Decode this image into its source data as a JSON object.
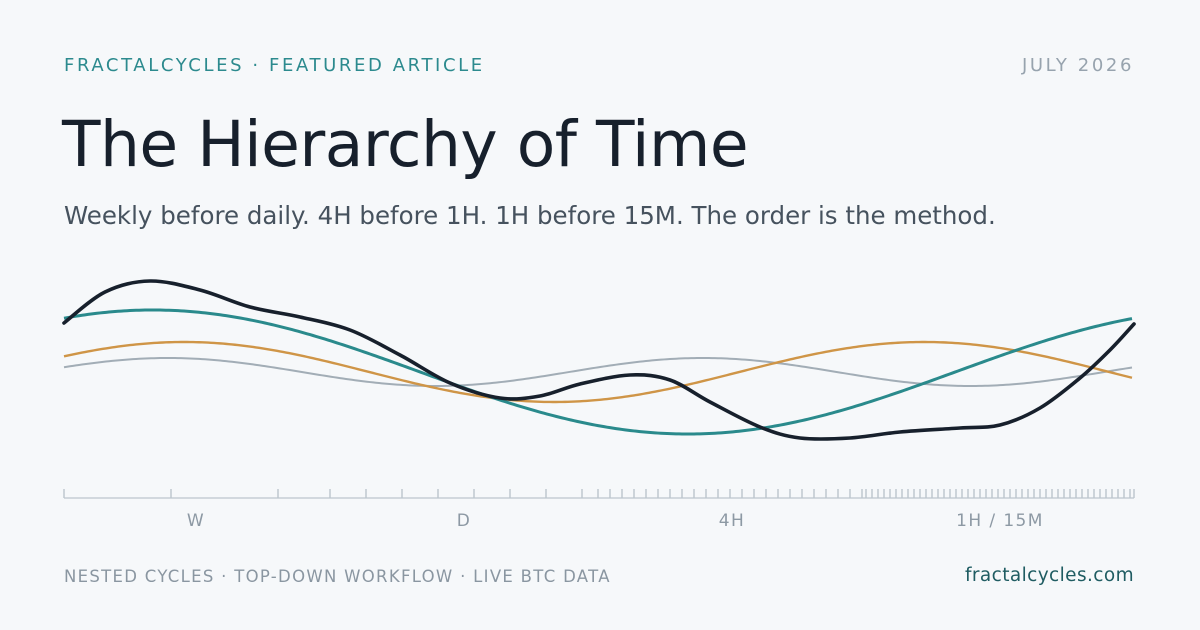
{
  "header": {
    "brand": "FRACTALCYCLES · FEATURED ARTICLE",
    "date": "JULY 2026"
  },
  "article": {
    "title": "The Hierarchy of Time",
    "subtitle": "Weekly before daily. 4H before 1H. 1H before 15M. The order is the method."
  },
  "timeframes": [
    "W",
    "D",
    "4H",
    "1H / 15M"
  ],
  "colors": {
    "background": "#f6f8fa",
    "brand": "#2c8a8e",
    "teal_cycle": "#2a8a8c",
    "orange_cycle": "#cf9547",
    "gray_cycle": "#a2adb6",
    "price": "#17202c",
    "axis": "#bcc5cd"
  },
  "footer": {
    "tagline": "NESTED CYCLES · TOP-DOWN WORKFLOW · LIVE BTC DATA",
    "url": "fractalcycles.com"
  }
}
